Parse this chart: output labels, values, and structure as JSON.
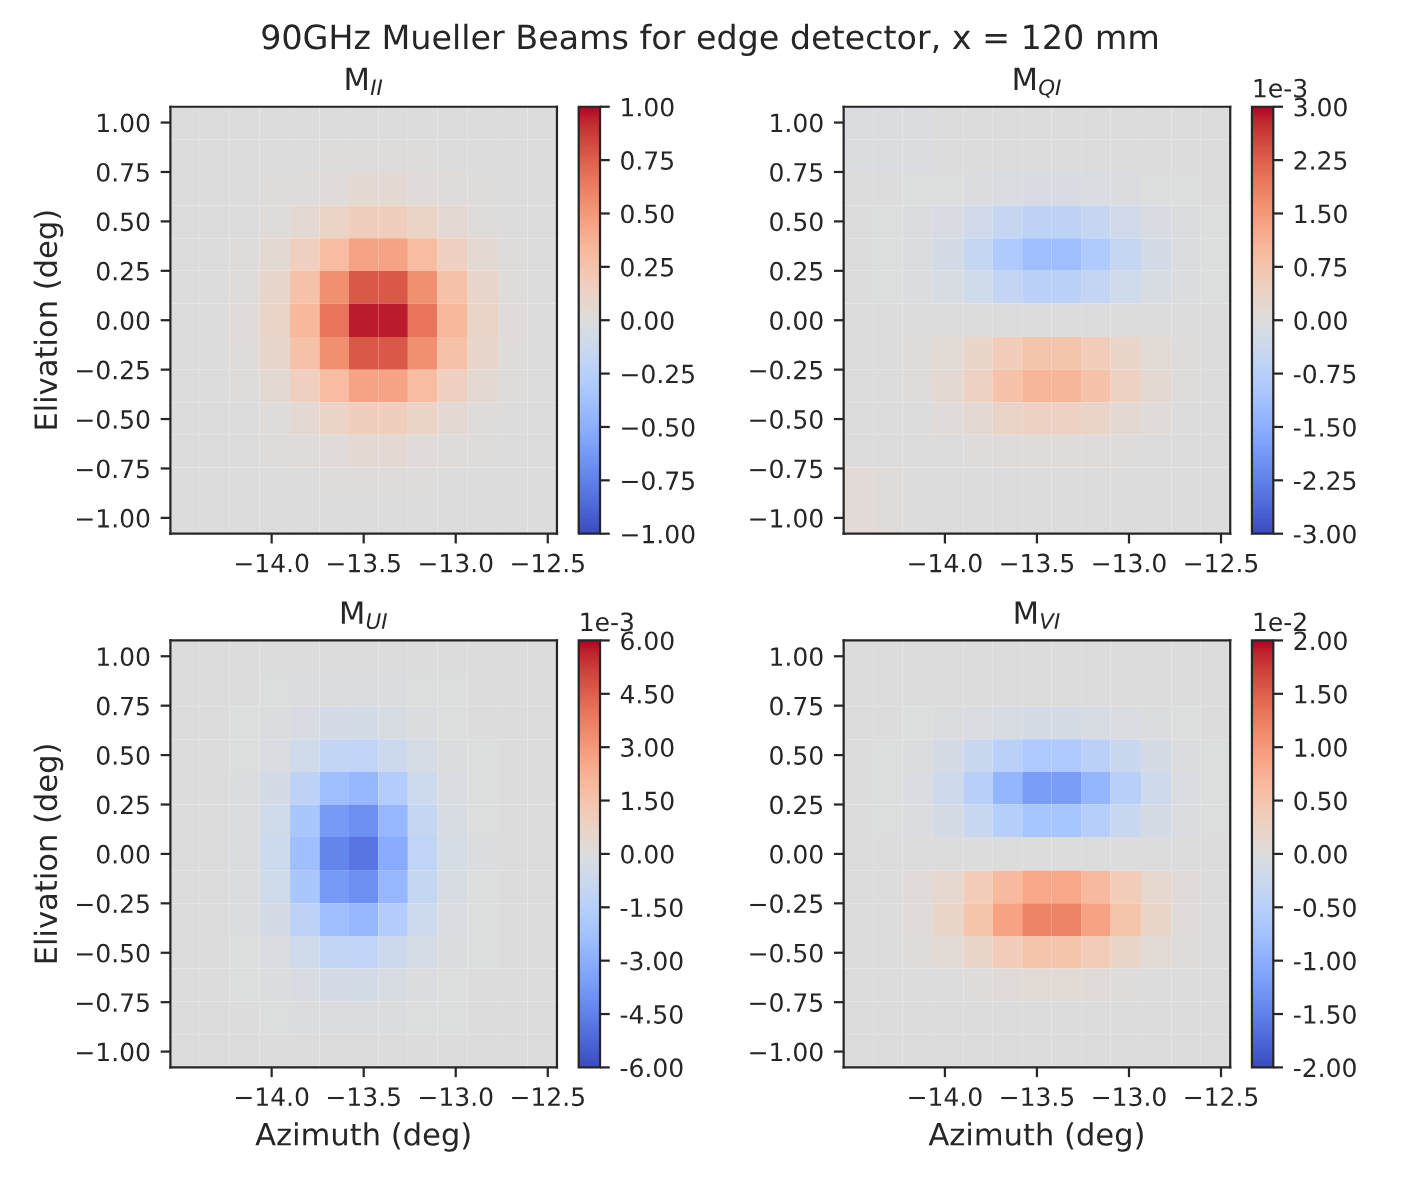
{
  "chart_data": [
    {
      "type": "heatmap",
      "title": "M$_{II}$",
      "ylabel": "Elivation (deg)",
      "annotations": [
        "90GHz Mueller Beams for edge detector, x = 120 mm"
      ],
      "x": [
        -14.47,
        -14.31,
        -14.15,
        -13.98,
        -13.82,
        -13.66,
        -13.5,
        -13.34,
        -13.18,
        -13.02,
        -12.85,
        -12.69,
        -12.53
      ],
      "y": [
        1.0,
        0.83,
        0.66,
        0.5,
        0.33,
        0.17,
        0,
        -0.17,
        -0.33,
        -0.5,
        -0.66,
        -0.83,
        -1.0
      ],
      "cells": [
        [
          0,
          0,
          0,
          0,
          0,
          0,
          0,
          0,
          0,
          0,
          0,
          0,
          0
        ],
        [
          0,
          0,
          0,
          0,
          0,
          0.01,
          0.01,
          0.01,
          0.01,
          0,
          0,
          0,
          0
        ],
        [
          0,
          0,
          0,
          0.01,
          0.02,
          0.03,
          0.05,
          0.05,
          0.03,
          0.02,
          0.01,
          0,
          0
        ],
        [
          0,
          0,
          0,
          0.02,
          0.06,
          0.12,
          0.17,
          0.17,
          0.12,
          0.06,
          0.02,
          0,
          0
        ],
        [
          0,
          0,
          0.01,
          0.05,
          0.16,
          0.31,
          0.45,
          0.45,
          0.31,
          0.16,
          0.05,
          0.01,
          0
        ],
        [
          0,
          0,
          0.02,
          0.09,
          0.27,
          0.55,
          0.78,
          0.78,
          0.55,
          0.27,
          0.09,
          0.02,
          0
        ],
        [
          0,
          0,
          0.03,
          0.11,
          0.33,
          0.67,
          0.96,
          0.96,
          0.67,
          0.33,
          0.11,
          0.03,
          0
        ],
        [
          0,
          0,
          0.02,
          0.09,
          0.27,
          0.55,
          0.78,
          0.78,
          0.55,
          0.27,
          0.09,
          0.02,
          0
        ],
        [
          0,
          0,
          0.01,
          0.05,
          0.16,
          0.31,
          0.45,
          0.45,
          0.31,
          0.16,
          0.05,
          0.01,
          0
        ],
        [
          0,
          0,
          0,
          0.02,
          0.06,
          0.12,
          0.17,
          0.17,
          0.12,
          0.06,
          0.02,
          0,
          0
        ],
        [
          0,
          0,
          0,
          0.01,
          0.02,
          0.03,
          0.05,
          0.05,
          0.03,
          0.02,
          0.01,
          0,
          0
        ],
        [
          0,
          0,
          0,
          0,
          0,
          0.01,
          0.01,
          0.01,
          0.01,
          0,
          0,
          0,
          0
        ],
        [
          0,
          0,
          0,
          0,
          0,
          0,
          0,
          0,
          0,
          0,
          0,
          0,
          0
        ]
      ],
      "clim": [
        -1,
        1
      ],
      "cticks": [
        {
          "value": 1,
          "label": "1.00"
        },
        {
          "value": 0.75,
          "label": "0.75"
        },
        {
          "value": 0.5,
          "label": "0.50"
        },
        {
          "value": 0.25,
          "label": "0.25"
        },
        {
          "value": 0,
          "label": "0.00"
        },
        {
          "value": -0.25,
          "label": "−0.25"
        },
        {
          "value": -0.5,
          "label": "−0.50"
        },
        {
          "value": -0.75,
          "label": "−0.75"
        },
        {
          "value": -1,
          "label": "−1.00"
        }
      ],
      "xlim": [
        -14.55,
        -12.45
      ],
      "ylim": [
        -1.08,
        1.08
      ],
      "xticks": [
        {
          "value": -14,
          "label": "−14.0"
        },
        {
          "value": -13.5,
          "label": "−13.5"
        },
        {
          "value": -13,
          "label": "−13.0"
        },
        {
          "value": -12.5,
          "label": "−12.5"
        }
      ],
      "yticks": [
        {
          "value": 1,
          "label": "1.00"
        },
        {
          "value": 0.75,
          "label": "0.75"
        },
        {
          "value": 0.5,
          "label": "0.50"
        },
        {
          "value": 0.25,
          "label": "0.25"
        },
        {
          "value": 0,
          "label": "0.00"
        },
        {
          "value": -0.25,
          "label": "−0.25"
        },
        {
          "value": -0.5,
          "label": "−0.50"
        },
        {
          "value": -0.75,
          "label": "−0.75"
        },
        {
          "value": -1,
          "label": "−1.00"
        }
      ]
    },
    {
      "type": "heatmap",
      "title": "M$_{QI}$",
      "clabel": "1e-3",
      "x": [
        -14.47,
        -14.31,
        -14.15,
        -13.98,
        -13.82,
        -13.66,
        -13.5,
        -13.34,
        -13.18,
        -13.02,
        -12.85,
        -12.69,
        -12.53
      ],
      "y": [
        1.0,
        0.83,
        0.66,
        0.5,
        0.33,
        0.17,
        0,
        -0.17,
        -0.33,
        -0.5,
        -0.66,
        -0.83,
        -1.0
      ],
      "cells": [
        [
          -0.05,
          -0.05,
          -0.05,
          0,
          0,
          0,
          0,
          0,
          0,
          0,
          0,
          0,
          0
        ],
        [
          -0.05,
          -0.05,
          -0.05,
          0,
          0,
          0,
          0,
          0,
          0,
          0,
          0,
          0,
          0
        ],
        [
          0,
          0,
          -0.01,
          -0.02,
          -0.05,
          -0.08,
          -0.11,
          -0.11,
          -0.08,
          -0.05,
          -0.02,
          -0.01,
          0
        ],
        [
          0,
          -0.01,
          -0.03,
          -0.11,
          -0.27,
          -0.48,
          -0.64,
          -0.64,
          -0.48,
          -0.27,
          -0.11,
          -0.03,
          -0.01
        ],
        [
          0,
          -0.01,
          -0.06,
          -0.21,
          -0.51,
          -0.91,
          -1.21,
          -1.21,
          -0.91,
          -0.51,
          -0.21,
          -0.06,
          -0.01
        ],
        [
          0,
          -0.01,
          -0.04,
          -0.12,
          -0.29,
          -0.52,
          -0.69,
          -0.69,
          -0.52,
          -0.29,
          -0.12,
          -0.04,
          -0.01
        ],
        [
          0,
          0,
          0,
          0,
          0,
          0,
          0,
          0,
          0,
          0,
          0,
          0,
          0
        ],
        [
          0,
          0.01,
          0.04,
          0.13,
          0.31,
          0.55,
          0.74,
          0.74,
          0.55,
          0.31,
          0.13,
          0.04,
          0.01
        ],
        [
          0,
          0.01,
          0.05,
          0.18,
          0.44,
          0.79,
          1.05,
          1.05,
          0.79,
          0.44,
          0.18,
          0.05,
          0.01
        ],
        [
          0,
          0,
          0.02,
          0.08,
          0.18,
          0.33,
          0.44,
          0.44,
          0.33,
          0.18,
          0.08,
          0.02,
          0
        ],
        [
          0,
          0,
          0,
          0.01,
          0.03,
          0.05,
          0.07,
          0.07,
          0.05,
          0.03,
          0.01,
          0,
          0
        ],
        [
          0.1,
          0.05,
          0,
          0,
          0,
          0,
          0,
          0,
          0,
          0,
          0,
          0,
          0
        ],
        [
          0.1,
          0.05,
          0,
          0,
          0,
          0,
          0,
          0,
          0,
          0,
          0,
          0,
          0
        ]
      ],
      "clim": [
        -3,
        3
      ],
      "cticks": [
        {
          "value": 3,
          "label": "3.00"
        },
        {
          "value": 2.25,
          "label": "2.25"
        },
        {
          "value": 1.5,
          "label": "1.50"
        },
        {
          "value": 0.75,
          "label": "0.75"
        },
        {
          "value": 0,
          "label": "0.00"
        },
        {
          "value": -0.75,
          "label": "-0.75"
        },
        {
          "value": -1.5,
          "label": "-1.50"
        },
        {
          "value": -2.25,
          "label": "-2.25"
        },
        {
          "value": -3,
          "label": "-3.00"
        }
      ],
      "xlim": [
        -14.55,
        -12.45
      ],
      "ylim": [
        -1.08,
        1.08
      ],
      "xticks": [
        {
          "value": -14,
          "label": "−14.0"
        },
        {
          "value": -13.5,
          "label": "−13.5"
        },
        {
          "value": -13,
          "label": "−13.0"
        },
        {
          "value": -12.5,
          "label": "−12.5"
        }
      ],
      "yticks": [
        {
          "value": 1,
          "label": "1.00"
        },
        {
          "value": 0.75,
          "label": "0.75"
        },
        {
          "value": 0.5,
          "label": "0.50"
        },
        {
          "value": 0.25,
          "label": "0.25"
        },
        {
          "value": 0,
          "label": "0.00"
        },
        {
          "value": -0.25,
          "label": "−0.25"
        },
        {
          "value": -0.5,
          "label": "−0.50"
        },
        {
          "value": -0.75,
          "label": "−0.75"
        },
        {
          "value": -1,
          "label": "−1.00"
        }
      ]
    },
    {
      "type": "heatmap",
      "title": "M$_{UI}$",
      "clabel": "1e-3",
      "xlabel": "Azimuth (deg)",
      "ylabel": "Elivation (deg)",
      "x": [
        -14.47,
        -14.31,
        -14.15,
        -13.98,
        -13.82,
        -13.66,
        -13.5,
        -13.34,
        -13.18,
        -13.02,
        -12.85,
        -12.69,
        -12.53
      ],
      "y": [
        1.0,
        0.83,
        0.66,
        0.5,
        0.33,
        0.17,
        0,
        -0.17,
        -0.33,
        -0.5,
        -0.66,
        -0.83,
        -1.0
      ],
      "cells": [
        [
          0,
          0,
          0,
          0,
          0,
          0,
          0,
          0,
          0,
          0,
          0,
          0,
          0
        ],
        [
          0,
          0,
          0,
          -0.01,
          -0.05,
          -0.09,
          -0.1,
          -0.06,
          -0.02,
          -0.01,
          0,
          0,
          0
        ],
        [
          0,
          0,
          -0.01,
          -0.06,
          -0.21,
          -0.4,
          -0.44,
          -0.28,
          -0.11,
          -0.03,
          0,
          0,
          0
        ],
        [
          0,
          0,
          -0.03,
          -0.18,
          -0.59,
          -1.1,
          -1.21,
          -0.79,
          -0.3,
          -0.08,
          -0.01,
          0,
          0
        ],
        [
          0,
          0,
          -0.06,
          -0.39,
          -1.29,
          -2.42,
          -2.67,
          -1.73,
          -0.66,
          -0.17,
          -0.03,
          0,
          0
        ],
        [
          0,
          0,
          -0.09,
          -0.6,
          -2.0,
          -3.74,
          -4.12,
          -2.68,
          -1.02,
          -0.26,
          -0.04,
          0,
          0
        ],
        [
          0,
          0,
          -0.1,
          -0.7,
          -2.35,
          -4.4,
          -4.85,
          -3.15,
          -1.2,
          -0.3,
          -0.05,
          0,
          0
        ],
        [
          0,
          0,
          -0.09,
          -0.6,
          -2.0,
          -3.74,
          -4.12,
          -2.68,
          -1.02,
          -0.26,
          -0.04,
          0,
          0
        ],
        [
          0,
          0,
          -0.06,
          -0.39,
          -1.29,
          -2.42,
          -2.67,
          -1.73,
          -0.66,
          -0.17,
          -0.03,
          0,
          0
        ],
        [
          0,
          0,
          -0.03,
          -0.18,
          -0.59,
          -1.1,
          -1.21,
          -0.79,
          -0.3,
          -0.08,
          -0.01,
          0,
          0
        ],
        [
          0,
          0,
          -0.01,
          -0.06,
          -0.21,
          -0.4,
          -0.44,
          -0.28,
          -0.11,
          -0.03,
          0,
          0,
          0
        ],
        [
          0,
          0,
          0,
          -0.01,
          -0.05,
          -0.09,
          -0.1,
          -0.06,
          -0.02,
          -0.01,
          0,
          0,
          0
        ],
        [
          0,
          0,
          0,
          0,
          0,
          0,
          0,
          0,
          0,
          0,
          0,
          0,
          0
        ]
      ],
      "clim": [
        -6,
        6
      ],
      "cticks": [
        {
          "value": 6,
          "label": "6.00"
        },
        {
          "value": 4.5,
          "label": "4.50"
        },
        {
          "value": 3,
          "label": "3.00"
        },
        {
          "value": 1.5,
          "label": "1.50"
        },
        {
          "value": 0,
          "label": "0.00"
        },
        {
          "value": -1.5,
          "label": "-1.50"
        },
        {
          "value": -3,
          "label": "-3.00"
        },
        {
          "value": -4.5,
          "label": "-4.50"
        },
        {
          "value": -6,
          "label": "-6.00"
        }
      ],
      "xlim": [
        -14.55,
        -12.45
      ],
      "ylim": [
        -1.08,
        1.08
      ],
      "xticks": [
        {
          "value": -14,
          "label": "−14.0"
        },
        {
          "value": -13.5,
          "label": "−13.5"
        },
        {
          "value": -13,
          "label": "−13.0"
        },
        {
          "value": -12.5,
          "label": "−12.5"
        }
      ],
      "yticks": [
        {
          "value": 1,
          "label": "1.00"
        },
        {
          "value": 0.75,
          "label": "0.75"
        },
        {
          "value": 0.5,
          "label": "0.50"
        },
        {
          "value": 0.25,
          "label": "0.25"
        },
        {
          "value": 0,
          "label": "0.00"
        },
        {
          "value": -0.25,
          "label": "−0.25"
        },
        {
          "value": -0.5,
          "label": "−0.50"
        },
        {
          "value": -0.75,
          "label": "−0.75"
        },
        {
          "value": -1,
          "label": "−1.00"
        }
      ]
    },
    {
      "type": "heatmap",
      "title": "M$_{VI}$",
      "clabel": "1e-2",
      "xlabel": "Azimuth (deg)",
      "x": [
        -14.47,
        -14.31,
        -14.15,
        -13.98,
        -13.82,
        -13.66,
        -13.5,
        -13.34,
        -13.18,
        -13.02,
        -12.85,
        -12.69,
        -12.53
      ],
      "y": [
        1.0,
        0.83,
        0.66,
        0.5,
        0.33,
        0.17,
        0,
        -0.17,
        -0.33,
        -0.5,
        -0.66,
        -0.83,
        -1.0
      ],
      "cells": [
        [
          0,
          0,
          0,
          0,
          0,
          0,
          0,
          0,
          0,
          0,
          0,
          0,
          0
        ],
        [
          0,
          0,
          0,
          0,
          0,
          0,
          0,
          0,
          0,
          0,
          0,
          0,
          0
        ],
        [
          0,
          0,
          -0.01,
          -0.02,
          -0.05,
          -0.08,
          -0.11,
          -0.11,
          -0.08,
          -0.05,
          -0.02,
          -0.01,
          0
        ],
        [
          0,
          -0.01,
          -0.03,
          -0.11,
          -0.27,
          -0.48,
          -0.64,
          -0.64,
          -0.48,
          -0.27,
          -0.11,
          -0.03,
          -0.01
        ],
        [
          0,
          -0.01,
          -0.06,
          -0.21,
          -0.51,
          -0.91,
          -1.21,
          -1.21,
          -0.91,
          -0.51,
          -0.21,
          -0.06,
          -0.01
        ],
        [
          0,
          -0.01,
          -0.04,
          -0.12,
          -0.29,
          -0.52,
          -0.69,
          -0.69,
          -0.52,
          -0.29,
          -0.12,
          -0.04,
          -0.01
        ],
        [
          0,
          0,
          0,
          0,
          0,
          0,
          0,
          0,
          0,
          0,
          0,
          0,
          0
        ],
        [
          0,
          0.01,
          0.05,
          0.15,
          0.36,
          0.63,
          0.85,
          0.85,
          0.63,
          0.36,
          0.15,
          0.05,
          0.01
        ],
        [
          0,
          0.01,
          0.06,
          0.21,
          0.51,
          0.91,
          1.21,
          1.21,
          0.91,
          0.51,
          0.21,
          0.06,
          0.01
        ],
        [
          0,
          0,
          0.02,
          0.09,
          0.21,
          0.38,
          0.51,
          0.51,
          0.38,
          0.21,
          0.09,
          0.02,
          0
        ],
        [
          0,
          0,
          0,
          0.01,
          0.03,
          0.06,
          0.08,
          0.08,
          0.06,
          0.03,
          0.01,
          0,
          0
        ],
        [
          0,
          0,
          0,
          0,
          0,
          0,
          0,
          0,
          0,
          0,
          0,
          0,
          0
        ],
        [
          0,
          0,
          0,
          0,
          0,
          0,
          0,
          0,
          0,
          0,
          0,
          0,
          0
        ]
      ],
      "clim": [
        -2,
        2
      ],
      "cticks": [
        {
          "value": 2,
          "label": "2.00"
        },
        {
          "value": 1.5,
          "label": "1.50"
        },
        {
          "value": 1,
          "label": "1.00"
        },
        {
          "value": 0.5,
          "label": "0.50"
        },
        {
          "value": 0,
          "label": "0.00"
        },
        {
          "value": -0.5,
          "label": "-0.50"
        },
        {
          "value": -1,
          "label": "-1.00"
        },
        {
          "value": -1.5,
          "label": "-1.50"
        },
        {
          "value": -2,
          "label": "-2.00"
        }
      ],
      "xlim": [
        -14.55,
        -12.45
      ],
      "ylim": [
        -1.08,
        1.08
      ],
      "xticks": [
        {
          "value": -14,
          "label": "−14.0"
        },
        {
          "value": -13.5,
          "label": "−13.5"
        },
        {
          "value": -13,
          "label": "−13.0"
        },
        {
          "value": -12.5,
          "label": "−12.5"
        }
      ],
      "yticks": [
        {
          "value": 1,
          "label": "1.00"
        },
        {
          "value": 0.75,
          "label": "0.75"
        },
        {
          "value": 0.5,
          "label": "0.50"
        },
        {
          "value": 0.25,
          "label": "0.25"
        },
        {
          "value": 0,
          "label": "0.00"
        },
        {
          "value": -0.25,
          "label": "−0.25"
        },
        {
          "value": -0.5,
          "label": "−0.50"
        },
        {
          "value": -0.75,
          "label": "−0.75"
        },
        {
          "value": -1,
          "label": "−1.00"
        }
      ]
    }
  ]
}
